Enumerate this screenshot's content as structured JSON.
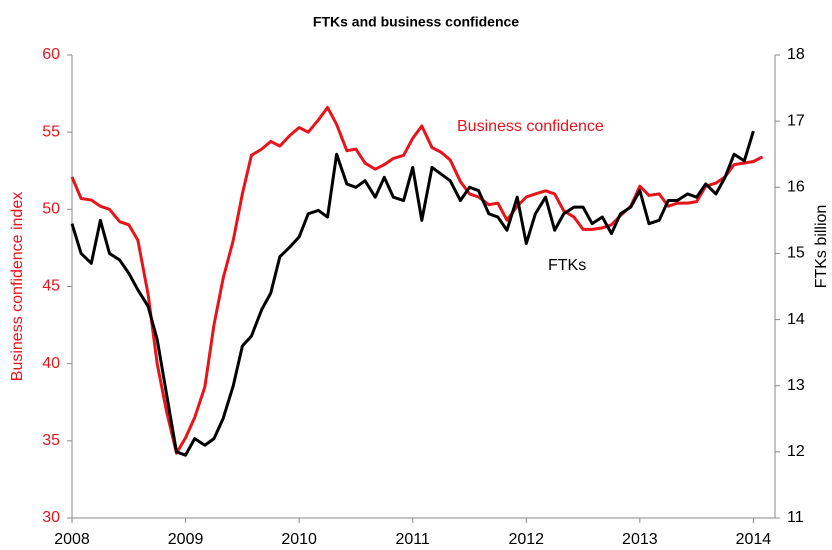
{
  "chart_data": {
    "type": "line",
    "title": "FTKs and business confidence",
    "ylabel": "Business confidence index",
    "y2label": "FTKs billion",
    "x": [
      2008,
      2008.08,
      2008.17,
      2008.25,
      2008.33,
      2008.42,
      2008.5,
      2008.58,
      2008.67,
      2008.75,
      2008.83,
      2008.92,
      2009,
      2009.08,
      2009.17,
      2009.25,
      2009.33,
      2009.42,
      2009.5,
      2009.58,
      2009.67,
      2009.75,
      2009.83,
      2009.92,
      2010,
      2010.08,
      2010.17,
      2010.25,
      2010.33,
      2010.42,
      2010.5,
      2010.58,
      2010.67,
      2010.75,
      2010.83,
      2010.92,
      2011,
      2011.08,
      2011.17,
      2011.25,
      2011.33,
      2011.42,
      2011.5,
      2011.58,
      2011.67,
      2011.75,
      2011.83,
      2011.92,
      2012,
      2012.08,
      2012.17,
      2012.25,
      2012.33,
      2012.42,
      2012.5,
      2012.58,
      2012.67,
      2012.75,
      2012.83,
      2012.92,
      2013,
      2013.08,
      2013.17,
      2013.25,
      2013.33,
      2013.42,
      2013.5,
      2013.58,
      2013.67,
      2013.75,
      2013.83,
      2013.92,
      2014,
      2014.08
    ],
    "series": [
      {
        "name": "Business confidence",
        "color": "#e8141c",
        "axis": "y",
        "values": [
          52.1,
          50.7,
          50.6,
          50.2,
          50.0,
          49.2,
          49.0,
          48.0,
          44.5,
          40.0,
          37.0,
          34.2,
          35.2,
          36.5,
          38.5,
          42.5,
          45.5,
          48.0,
          51.0,
          53.5,
          53.9,
          54.4,
          54.1,
          54.8,
          55.3,
          55.0,
          55.8,
          56.6,
          55.5,
          53.8,
          53.9,
          53.0,
          52.6,
          52.9,
          53.3,
          53.5,
          54.6,
          55.4,
          54.0,
          53.7,
          53.2,
          51.8,
          51.0,
          50.8,
          50.3,
          50.4,
          49.3,
          50.2,
          50.8,
          51.0,
          51.2,
          51.0,
          49.9,
          49.5,
          48.7,
          48.7,
          48.8,
          49.0,
          49.6,
          50.2,
          51.5,
          50.9,
          51.0,
          50.2,
          50.4,
          50.4,
          50.5,
          51.5,
          51.7,
          52.1,
          52.9,
          53.0,
          53.1,
          53.4
        ]
      },
      {
        "name": "FTKs",
        "color": "#000000",
        "axis": "y2",
        "values": [
          15.45,
          15.0,
          14.85,
          15.5,
          15.0,
          14.9,
          14.7,
          14.45,
          14.2,
          13.7,
          12.9,
          12.0,
          11.95,
          12.2,
          12.1,
          12.2,
          12.5,
          13.0,
          13.6,
          13.75,
          14.15,
          14.4,
          14.95,
          15.1,
          15.25,
          15.6,
          15.65,
          15.55,
          16.5,
          16.05,
          16.0,
          16.1,
          15.85,
          16.15,
          15.85,
          15.8,
          16.3,
          15.5,
          16.3,
          16.2,
          16.1,
          15.8,
          16.0,
          15.95,
          15.6,
          15.55,
          15.35,
          15.85,
          15.15,
          15.6,
          15.85,
          15.35,
          15.6,
          15.7,
          15.7,
          15.45,
          15.55,
          15.3,
          15.6,
          15.7,
          15.95,
          15.45,
          15.5,
          15.8,
          15.8,
          15.9,
          15.85,
          16.05,
          15.9,
          16.15,
          16.5,
          16.4,
          16.85,
          null
        ]
      }
    ],
    "xlim": [
      2008,
      2014.19
    ],
    "xticks": [
      2008,
      2009,
      2010,
      2011,
      2012,
      2013,
      2014
    ],
    "ylim": [
      30,
      60
    ],
    "yticks": [
      30,
      35,
      40,
      45,
      50,
      55,
      60
    ],
    "y2lim": [
      11,
      18
    ],
    "y2ticks": [
      11,
      12,
      13,
      14,
      15,
      16,
      17,
      18
    ],
    "grid": false
  }
}
